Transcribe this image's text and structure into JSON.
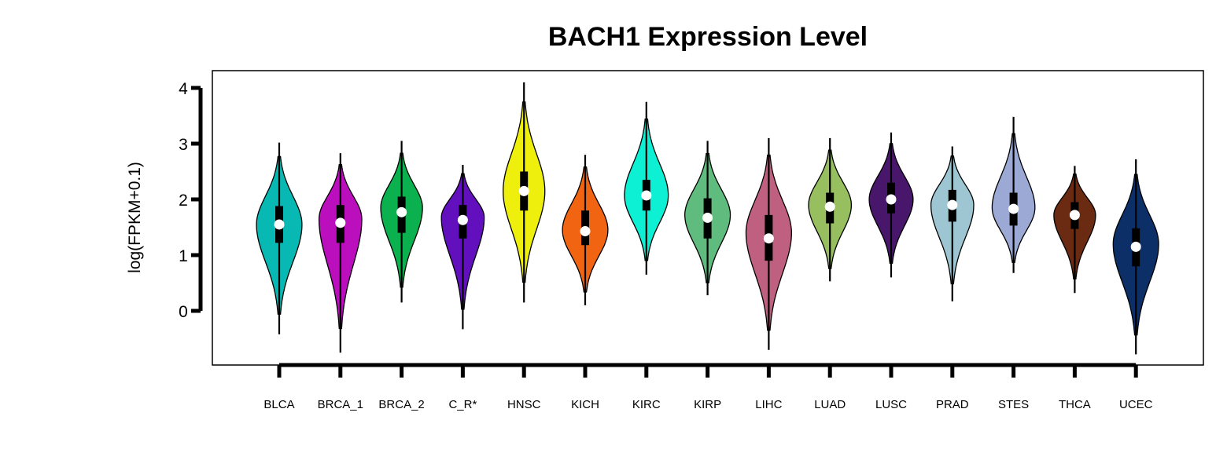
{
  "chart_data": {
    "type": "violin",
    "title": "BACH1 Expression Level",
    "xlabel": "",
    "ylabel": "log(FPKM+0.1)",
    "yticks": [
      0,
      1,
      2,
      3,
      4
    ],
    "ylim": [
      -0.95,
      4.3
    ],
    "grid": false,
    "legend": "none",
    "categories": [
      "BLCA",
      "BRCA_1",
      "BRCA_2",
      "C_R*",
      "HNSC",
      "KICH",
      "KIRC",
      "KIRP",
      "LIHC",
      "LUAD",
      "LUSC",
      "PRAD",
      "STES",
      "THCA",
      "UCEC"
    ],
    "colors": [
      "#08b8b2",
      "#bb0fbe",
      "#0ab14e",
      "#6210bd",
      "#eeef0d",
      "#f16512",
      "#0df0d4",
      "#5fbb7e",
      "#c06080",
      "#97bf60",
      "#48166b",
      "#9ec5d2",
      "#9ba9d4",
      "#6b2a12",
      "#0c2f68"
    ],
    "series": [
      {
        "min": -0.42,
        "max": 3.02,
        "q1": 1.22,
        "median": 1.55,
        "q3": 1.88,
        "mode": 1.55,
        "width": 0.85
      },
      {
        "min": -0.75,
        "max": 2.83,
        "q1": 1.22,
        "median": 1.58,
        "q3": 1.9,
        "mode": 1.65,
        "width": 0.8
      },
      {
        "min": 0.15,
        "max": 3.05,
        "q1": 1.4,
        "median": 1.77,
        "q3": 2.05,
        "mode": 1.85,
        "width": 0.78
      },
      {
        "min": -0.33,
        "max": 2.62,
        "q1": 1.3,
        "median": 1.63,
        "q3": 1.9,
        "mode": 1.68,
        "width": 0.8
      },
      {
        "min": 0.15,
        "max": 4.1,
        "q1": 1.8,
        "median": 2.15,
        "q3": 2.5,
        "mode": 2.15,
        "width": 0.78
      },
      {
        "min": 0.1,
        "max": 2.8,
        "q1": 1.18,
        "median": 1.43,
        "q3": 1.8,
        "mode": 1.45,
        "width": 0.85
      },
      {
        "min": 0.65,
        "max": 3.75,
        "q1": 1.8,
        "median": 2.07,
        "q3": 2.35,
        "mode": 2.07,
        "width": 0.82
      },
      {
        "min": 0.28,
        "max": 3.05,
        "q1": 1.3,
        "median": 1.67,
        "q3": 2.02,
        "mode": 1.72,
        "width": 0.85
      },
      {
        "min": -0.7,
        "max": 3.1,
        "q1": 0.9,
        "median": 1.3,
        "q3": 1.72,
        "mode": 1.4,
        "width": 0.85
      },
      {
        "min": 0.53,
        "max": 3.1,
        "q1": 1.57,
        "median": 1.87,
        "q3": 2.12,
        "mode": 1.9,
        "width": 0.8
      },
      {
        "min": 0.6,
        "max": 3.2,
        "q1": 1.75,
        "median": 2.0,
        "q3": 2.3,
        "mode": 2.0,
        "width": 0.82
      },
      {
        "min": 0.17,
        "max": 2.95,
        "q1": 1.6,
        "median": 1.9,
        "q3": 2.17,
        "mode": 1.9,
        "width": 0.8
      },
      {
        "min": 0.68,
        "max": 3.48,
        "q1": 1.53,
        "median": 1.83,
        "q3": 2.12,
        "mode": 1.85,
        "width": 0.8
      },
      {
        "min": 0.32,
        "max": 2.6,
        "q1": 1.47,
        "median": 1.72,
        "q3": 1.95,
        "mode": 1.72,
        "width": 0.78
      },
      {
        "min": -0.78,
        "max": 2.72,
        "q1": 0.8,
        "median": 1.15,
        "q3": 1.48,
        "mode": 1.2,
        "width": 0.85
      }
    ]
  }
}
